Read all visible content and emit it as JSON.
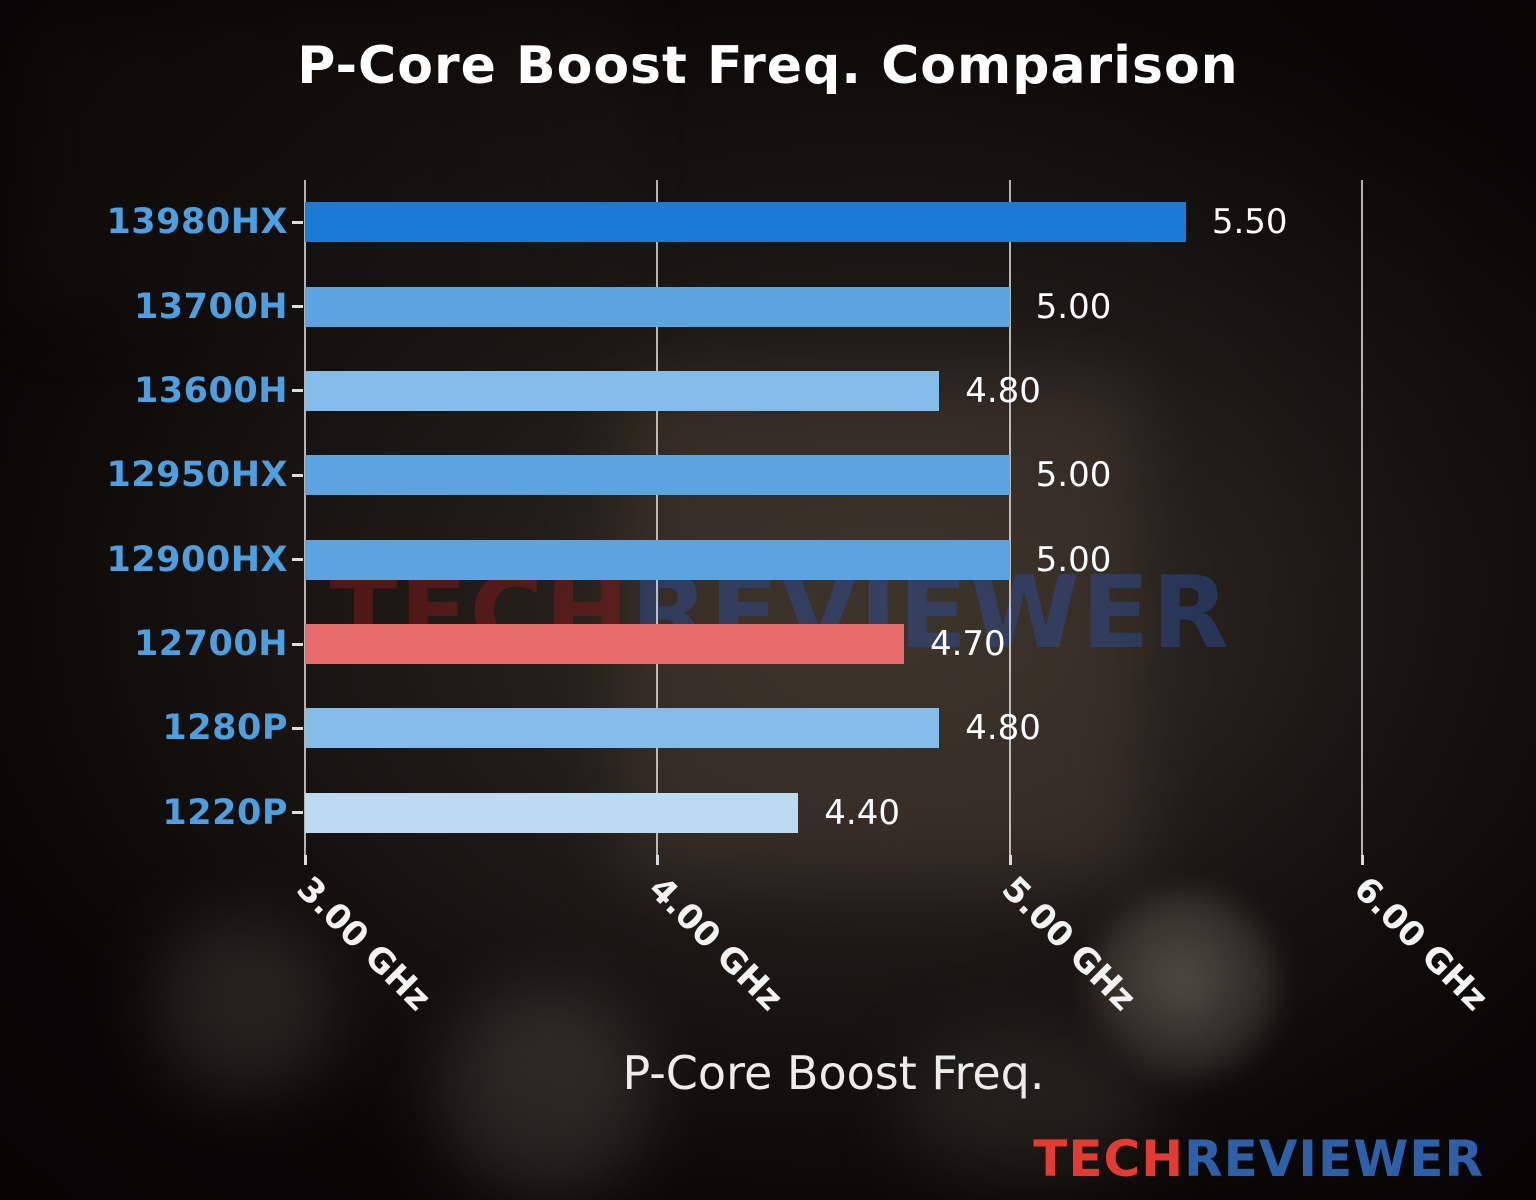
{
  "chart_data": {
    "type": "bar",
    "orientation": "horizontal",
    "title": "P-Core Boost Freq. Comparison",
    "xlabel": "P-Core Boost Freq.",
    "ylabel": "",
    "categories": [
      "13980HX",
      "13700H",
      "13600H",
      "12950HX",
      "12900HX",
      "12700H",
      "1280P",
      "1220P"
    ],
    "values": [
      5.5,
      5.0,
      4.8,
      5.0,
      5.0,
      4.7,
      4.8,
      4.4
    ],
    "value_labels": [
      "5.50",
      "5.00",
      "4.80",
      "5.00",
      "5.00",
      "4.70",
      "4.80",
      "4.40"
    ],
    "bar_colors": [
      "#1b7ad3",
      "#5ba4e0",
      "#86bce9",
      "#5ba4e0",
      "#5ba4e0",
      "#e86b6b",
      "#86bce9",
      "#bcdbf2"
    ],
    "highlight_category": "12700H",
    "unit": "GHz",
    "x_ticks": [
      {
        "value": 3.0,
        "label": "3.00 GHz"
      },
      {
        "value": 4.0,
        "label": "4.00 GHz"
      },
      {
        "value": 5.0,
        "label": "5.00 GHz"
      },
      {
        "value": 6.0,
        "label": "6.00 GHz"
      }
    ],
    "xlim": [
      3.0,
      6.0
    ],
    "grid": true,
    "legend": false
  },
  "watermark": {
    "center": {
      "tech": "TECH",
      "reviewer": "REVIEWER"
    },
    "footer": {
      "tech": "TECH",
      "reviewer": "REVIEWER"
    }
  },
  "colors": {
    "category_label": "#4d9fdf",
    "value_label": "#ffffff",
    "tick_label": "#f2f2f2",
    "gridline": "rgba(235,235,235,0.75)",
    "bar_highlight": "#e86b6b",
    "center_tech": "rgba(130,25,25,0.50)",
    "center_reviewer": "rgba(45,80,160,0.45)",
    "footer_tech": "#e23b31",
    "footer_reviewer": "#2e5fa9"
  }
}
